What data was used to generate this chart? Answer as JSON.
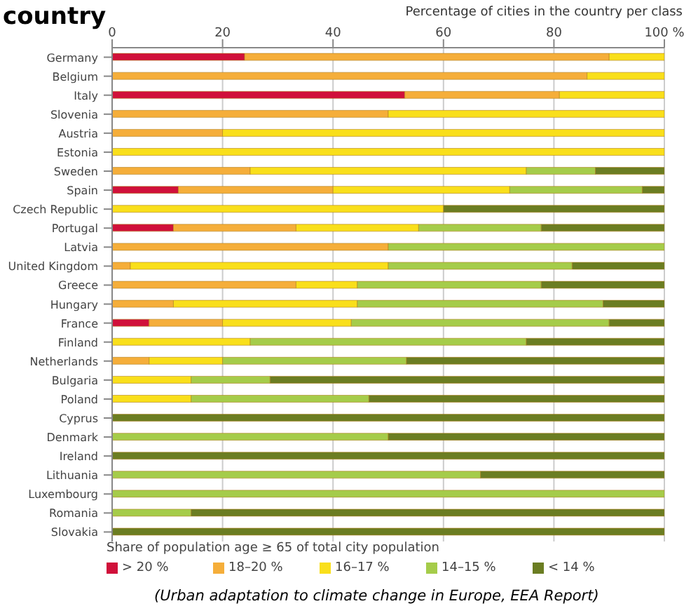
{
  "chart_data": {
    "type": "bar",
    "orientation": "horizontal",
    "stacked": true,
    "title": "country",
    "xlabel": "Percentage of cities in the country per class",
    "legend_title": "Share of population age ≥ 65 of total city population",
    "categories": [
      "Germany",
      "Belgium",
      "Italy",
      "Slovenia",
      "Austria",
      "Estonia",
      "Sweden",
      "Spain",
      "Czech Republic",
      "Portugal",
      "Latvia",
      "United Kingdom",
      "Greece",
      "Hungary",
      "France",
      "Finland",
      "Netherlands",
      "Bulgaria",
      "Poland",
      "Cyprus",
      "Denmark",
      "Ireland",
      "Lithuania",
      "Luxembourg",
      "Romania",
      "Slovakia"
    ],
    "series": [
      {
        "name": "> 20 %",
        "color": "#d0103a",
        "values": [
          24,
          0,
          53,
          0,
          0,
          0,
          0,
          12,
          0,
          11.1,
          0,
          0,
          0,
          0,
          6.7,
          0,
          0,
          0,
          0,
          0,
          0,
          0,
          0,
          0,
          0,
          0
        ]
      },
      {
        "name": "18–20 %",
        "color": "#f5ae3a",
        "values": [
          66,
          86,
          28,
          50,
          20,
          0,
          25,
          28,
          0,
          22.2,
          50,
          3.3,
          33.3,
          11.1,
          13.3,
          0,
          6.7,
          0,
          0,
          0,
          0,
          0,
          0,
          0,
          0,
          0
        ]
      },
      {
        "name": "16–17 %",
        "color": "#f9df1b",
        "values": [
          10,
          14,
          19,
          50,
          80,
          100,
          50,
          32,
          60,
          22.2,
          0,
          46.7,
          11.1,
          33.3,
          23.3,
          25,
          13.3,
          14.3,
          14.3,
          0,
          0,
          0,
          0,
          0,
          0,
          0
        ]
      },
      {
        "name": "14–15 %",
        "color": "#a5cc4a",
        "values": [
          0,
          0,
          0,
          0,
          0,
          0,
          12.5,
          24,
          0,
          22.2,
          50,
          33.3,
          33.3,
          44.5,
          46.7,
          50,
          33.3,
          14.3,
          32.2,
          0,
          50,
          0,
          66.7,
          100,
          14.3,
          0
        ]
      },
      {
        "name": "< 14 %",
        "color": "#6b7d22",
        "values": [
          0,
          0,
          0,
          0,
          0,
          0,
          12.5,
          4,
          40,
          22.3,
          0,
          16.7,
          22.3,
          11.1,
          10,
          25,
          46.7,
          71.4,
          53.5,
          100,
          50,
          100,
          33.3,
          0,
          85.7,
          100
        ]
      }
    ],
    "xlim": [
      0,
      100
    ],
    "xticks": [
      0,
      20,
      40,
      60,
      80,
      {
        "value": 100,
        "label": "100 %"
      }
    ],
    "grid": "x",
    "legend": "bottom",
    "annotations": [
      "(Urban adaptation to climate change in Europe, EEA Report)"
    ]
  }
}
